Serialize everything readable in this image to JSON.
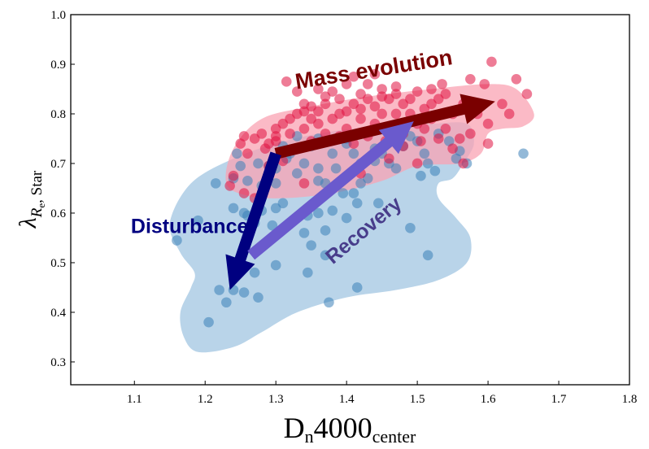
{
  "chart_data": {
    "type": "scatter",
    "title": "",
    "xlabel": {
      "main": "D",
      "sub1": "n",
      "mid": "4000",
      "sub2": "center"
    },
    "ylabel": {
      "main": "λ",
      "sub_italic": "R",
      "sub_sub": "e",
      "rest": ", Star"
    },
    "xlim": [
      1.01,
      1.8
    ],
    "ylim": [
      0.254,
      1.0
    ],
    "xticks": [
      1.1,
      1.2,
      1.3,
      1.4,
      1.5,
      1.6,
      1.7,
      1.8
    ],
    "xtick_labels": [
      "1.1",
      "1.2",
      "1.3",
      "1.4",
      "1.5",
      "1.6",
      "1.7",
      "1.8"
    ],
    "yticks": [
      0.3,
      0.4,
      0.5,
      0.6,
      0.7,
      0.8,
      0.9,
      1.0
    ],
    "ytick_labels": [
      "0.3",
      "0.4",
      "0.5",
      "0.6",
      "0.7",
      "0.8",
      "0.9",
      "1.0"
    ],
    "grid": false,
    "colors": {
      "blue_points": "#3a7fb8",
      "blue_region": "#b9d4e9",
      "red_points": "#e0103f",
      "red_region": "#f9a3b3",
      "mass_arrow": "#7a0000",
      "disturbance_arrow": "#000080",
      "recovery_arrow": "#6a5acd",
      "recovery_text": "#483d8b"
    },
    "regions": [
      {
        "name": "blue-density-region",
        "color": "blue_region",
        "outline": [
          [
            1.15,
            0.58
          ],
          [
            1.18,
            0.66
          ],
          [
            1.24,
            0.71
          ],
          [
            1.3,
            0.74
          ],
          [
            1.36,
            0.76
          ],
          [
            1.44,
            0.775
          ],
          [
            1.52,
            0.78
          ],
          [
            1.57,
            0.78
          ],
          [
            1.58,
            0.74
          ],
          [
            1.565,
            0.7
          ],
          [
            1.55,
            0.67
          ],
          [
            1.53,
            0.66
          ],
          [
            1.53,
            0.63
          ],
          [
            1.555,
            0.59
          ],
          [
            1.575,
            0.55
          ],
          [
            1.57,
            0.5
          ],
          [
            1.53,
            0.465
          ],
          [
            1.47,
            0.445
          ],
          [
            1.4,
            0.43
          ],
          [
            1.33,
            0.4
          ],
          [
            1.28,
            0.36
          ],
          [
            1.24,
            0.33
          ],
          [
            1.19,
            0.32
          ],
          [
            1.17,
            0.35
          ],
          [
            1.165,
            0.4
          ],
          [
            1.18,
            0.45
          ],
          [
            1.185,
            0.48
          ],
          [
            1.165,
            0.52
          ]
        ]
      },
      {
        "name": "red-density-region",
        "color": "red_region",
        "outline": [
          [
            1.23,
            0.66
          ],
          [
            1.24,
            0.73
          ],
          [
            1.28,
            0.79
          ],
          [
            1.35,
            0.815
          ],
          [
            1.43,
            0.835
          ],
          [
            1.52,
            0.85
          ],
          [
            1.6,
            0.86
          ],
          [
            1.64,
            0.85
          ],
          [
            1.665,
            0.8
          ],
          [
            1.65,
            0.775
          ],
          [
            1.62,
            0.77
          ],
          [
            1.6,
            0.76
          ],
          [
            1.59,
            0.72
          ],
          [
            1.56,
            0.7
          ],
          [
            1.5,
            0.695
          ],
          [
            1.45,
            0.665
          ],
          [
            1.38,
            0.64
          ],
          [
            1.31,
            0.63
          ],
          [
            1.26,
            0.635
          ]
        ]
      }
    ],
    "series": [
      {
        "name": "blue-sample",
        "color": "blue_points",
        "points": [
          [
            1.205,
            0.38
          ],
          [
            1.23,
            0.42
          ],
          [
            1.24,
            0.445
          ],
          [
            1.22,
            0.445
          ],
          [
            1.255,
            0.44
          ],
          [
            1.275,
            0.43
          ],
          [
            1.27,
            0.48
          ],
          [
            1.3,
            0.495
          ],
          [
            1.345,
            0.48
          ],
          [
            1.375,
            0.42
          ],
          [
            1.415,
            0.45
          ],
          [
            1.37,
            0.515
          ],
          [
            1.35,
            0.535
          ],
          [
            1.34,
            0.56
          ],
          [
            1.37,
            0.565
          ],
          [
            1.4,
            0.59
          ],
          [
            1.38,
            0.605
          ],
          [
            1.415,
            0.62
          ],
          [
            1.445,
            0.62
          ],
          [
            1.49,
            0.57
          ],
          [
            1.515,
            0.515
          ],
          [
            1.555,
            0.71
          ],
          [
            1.65,
            0.72
          ],
          [
            1.16,
            0.545
          ],
          [
            1.19,
            0.585
          ],
          [
            1.24,
            0.61
          ],
          [
            1.26,
            0.595
          ],
          [
            1.28,
            0.605
          ],
          [
            1.3,
            0.61
          ],
          [
            1.31,
            0.62
          ],
          [
            1.33,
            0.59
          ],
          [
            1.345,
            0.595
          ],
          [
            1.36,
            0.6
          ],
          [
            1.395,
            0.64
          ],
          [
            1.41,
            0.64
          ],
          [
            1.42,
            0.66
          ],
          [
            1.43,
            0.67
          ],
          [
            1.37,
            0.66
          ],
          [
            1.36,
            0.69
          ],
          [
            1.34,
            0.7
          ],
          [
            1.33,
            0.68
          ],
          [
            1.3,
            0.66
          ],
          [
            1.28,
            0.655
          ],
          [
            1.26,
            0.665
          ],
          [
            1.24,
            0.67
          ],
          [
            1.215,
            0.66
          ],
          [
            1.25,
            0.695
          ],
          [
            1.29,
            0.695
          ],
          [
            1.31,
            0.735
          ],
          [
            1.32,
            0.72
          ],
          [
            1.35,
            0.735
          ],
          [
            1.38,
            0.72
          ],
          [
            1.4,
            0.74
          ],
          [
            1.42,
            0.7
          ],
          [
            1.44,
            0.705
          ],
          [
            1.45,
            0.72
          ],
          [
            1.46,
            0.7
          ],
          [
            1.48,
            0.735
          ],
          [
            1.5,
            0.745
          ],
          [
            1.51,
            0.72
          ],
          [
            1.515,
            0.7
          ],
          [
            1.525,
            0.685
          ],
          [
            1.505,
            0.675
          ],
          [
            1.47,
            0.69
          ],
          [
            1.4,
            0.75
          ],
          [
            1.36,
            0.75
          ],
          [
            1.33,
            0.755
          ],
          [
            1.255,
            0.6
          ],
          [
            1.27,
            0.58
          ],
          [
            1.295,
            0.575
          ],
          [
            1.44,
            0.73
          ],
          [
            1.41,
            0.72
          ],
          [
            1.385,
            0.69
          ],
          [
            1.36,
            0.665
          ],
          [
            1.49,
            0.755
          ],
          [
            1.53,
            0.76
          ],
          [
            1.545,
            0.745
          ],
          [
            1.56,
            0.725
          ],
          [
            1.57,
            0.7
          ],
          [
            1.315,
            0.71
          ],
          [
            1.3,
            0.69
          ],
          [
            1.275,
            0.7
          ],
          [
            1.245,
            0.72
          ]
        ]
      },
      {
        "name": "red-sample",
        "color": "red_points",
        "points": [
          [
            1.315,
            0.865
          ],
          [
            1.605,
            0.905
          ],
          [
            1.575,
            0.87
          ],
          [
            1.595,
            0.86
          ],
          [
            1.64,
            0.87
          ],
          [
            1.655,
            0.84
          ],
          [
            1.63,
            0.8
          ],
          [
            1.62,
            0.82
          ],
          [
            1.6,
            0.78
          ],
          [
            1.575,
            0.76
          ],
          [
            1.56,
            0.75
          ],
          [
            1.55,
            0.8
          ],
          [
            1.52,
            0.85
          ],
          [
            1.535,
            0.86
          ],
          [
            1.54,
            0.84
          ],
          [
            1.53,
            0.83
          ],
          [
            1.51,
            0.81
          ],
          [
            1.49,
            0.83
          ],
          [
            1.5,
            0.845
          ],
          [
            1.48,
            0.82
          ],
          [
            1.47,
            0.8
          ],
          [
            1.46,
            0.83
          ],
          [
            1.45,
            0.85
          ],
          [
            1.44,
            0.815
          ],
          [
            1.43,
            0.83
          ],
          [
            1.42,
            0.84
          ],
          [
            1.41,
            0.82
          ],
          [
            1.4,
            0.805
          ],
          [
            1.39,
            0.83
          ],
          [
            1.38,
            0.845
          ],
          [
            1.37,
            0.82
          ],
          [
            1.36,
            0.85
          ],
          [
            1.35,
            0.815
          ],
          [
            1.34,
            0.82
          ],
          [
            1.33,
            0.8
          ],
          [
            1.32,
            0.79
          ],
          [
            1.31,
            0.78
          ],
          [
            1.3,
            0.77
          ],
          [
            1.28,
            0.76
          ],
          [
            1.27,
            0.75
          ],
          [
            1.255,
            0.755
          ],
          [
            1.25,
            0.74
          ],
          [
            1.26,
            0.72
          ],
          [
            1.285,
            0.73
          ],
          [
            1.3,
            0.745
          ],
          [
            1.32,
            0.76
          ],
          [
            1.34,
            0.77
          ],
          [
            1.36,
            0.78
          ],
          [
            1.38,
            0.79
          ],
          [
            1.4,
            0.77
          ],
          [
            1.42,
            0.79
          ],
          [
            1.44,
            0.78
          ],
          [
            1.46,
            0.77
          ],
          [
            1.48,
            0.76
          ],
          [
            1.5,
            0.78
          ],
          [
            1.52,
            0.79
          ],
          [
            1.54,
            0.77
          ],
          [
            1.4,
            0.86
          ],
          [
            1.43,
            0.86
          ],
          [
            1.37,
            0.835
          ],
          [
            1.35,
            0.79
          ],
          [
            1.45,
            0.8
          ],
          [
            1.47,
            0.84
          ],
          [
            1.49,
            0.8
          ],
          [
            1.51,
            0.77
          ],
          [
            1.53,
            0.75
          ],
          [
            1.55,
            0.73
          ],
          [
            1.505,
            0.745
          ],
          [
            1.48,
            0.735
          ],
          [
            1.455,
            0.745
          ],
          [
            1.43,
            0.755
          ],
          [
            1.41,
            0.74
          ],
          [
            1.39,
            0.755
          ],
          [
            1.37,
            0.76
          ],
          [
            1.35,
            0.745
          ],
          [
            1.33,
            0.73
          ],
          [
            1.31,
            0.705
          ],
          [
            1.29,
            0.695
          ],
          [
            1.24,
            0.675
          ],
          [
            1.235,
            0.655
          ],
          [
            1.255,
            0.64
          ],
          [
            1.27,
            0.63
          ],
          [
            1.34,
            0.66
          ],
          [
            1.42,
            0.68
          ],
          [
            1.46,
            0.71
          ],
          [
            1.5,
            0.7
          ],
          [
            1.565,
            0.7
          ],
          [
            1.6,
            0.74
          ],
          [
            1.44,
            0.88
          ],
          [
            1.41,
            0.875
          ],
          [
            1.45,
            0.835
          ],
          [
            1.39,
            0.8
          ],
          [
            1.33,
            0.845
          ],
          [
            1.47,
            0.855
          ],
          [
            1.52,
            0.82
          ],
          [
            1.565,
            0.82
          ],
          [
            1.585,
            0.8
          ],
          [
            1.36,
            0.805
          ],
          [
            1.42,
            0.81
          ],
          [
            1.34,
            0.805
          ],
          [
            1.3,
            0.755
          ],
          [
            1.29,
            0.74
          ]
        ]
      }
    ],
    "annotations": [
      {
        "text": "Mass evolution",
        "color": "mass_arrow",
        "anchor": [
          1.44,
          0.875
        ],
        "rotation_deg": -9
      },
      {
        "text": "Disturbance",
        "color": "disturbance_arrow",
        "anchor": [
          1.095,
          0.56
        ],
        "rotation_deg": 0
      },
      {
        "text": "Recovery",
        "color": "recovery_text",
        "anchor": [
          1.43,
          0.555
        ],
        "rotation_deg": -40
      }
    ],
    "arrows": [
      {
        "name": "mass-evolution-arrow",
        "from": [
          1.3,
          0.72
        ],
        "to": [
          1.61,
          0.825
        ],
        "color": "mass_arrow"
      },
      {
        "name": "disturbance-arrow",
        "from": [
          1.3,
          0.72
        ],
        "to": [
          1.235,
          0.445
        ],
        "color": "disturbance_arrow"
      },
      {
        "name": "recovery-arrow",
        "from": [
          1.265,
          0.515
        ],
        "to": [
          1.495,
          0.785
        ],
        "color": "recovery_arrow"
      }
    ]
  }
}
